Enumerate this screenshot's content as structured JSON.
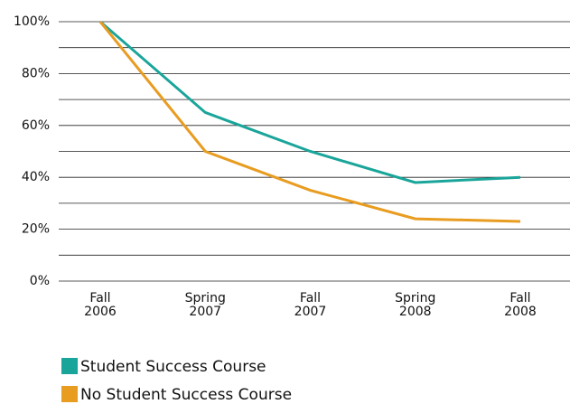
{
  "chart_data": {
    "type": "line",
    "categories": [
      "Fall 2006",
      "Spring 2007",
      "Fall 2007",
      "Spring 2008",
      "Fall 2008"
    ],
    "series": [
      {
        "name": "Student Success Course",
        "color": "#1aa59a",
        "values": [
          100,
          65,
          50,
          38,
          40
        ]
      },
      {
        "name": "No Student Success Course",
        "color": "#e89c20",
        "values": [
          100,
          50,
          35,
          24,
          23
        ]
      }
    ],
    "ylim": [
      0,
      100
    ],
    "yticks": [
      {
        "value": 0,
        "label": "0%"
      },
      {
        "value": 20,
        "label": "20%"
      },
      {
        "value": 40,
        "label": "40%"
      },
      {
        "value": 60,
        "label": "60%"
      },
      {
        "value": 80,
        "label": "80%"
      },
      {
        "value": 100,
        "label": "100%"
      }
    ],
    "minor_yticks": [
      10,
      30,
      50,
      70,
      90
    ],
    "grid": true
  }
}
